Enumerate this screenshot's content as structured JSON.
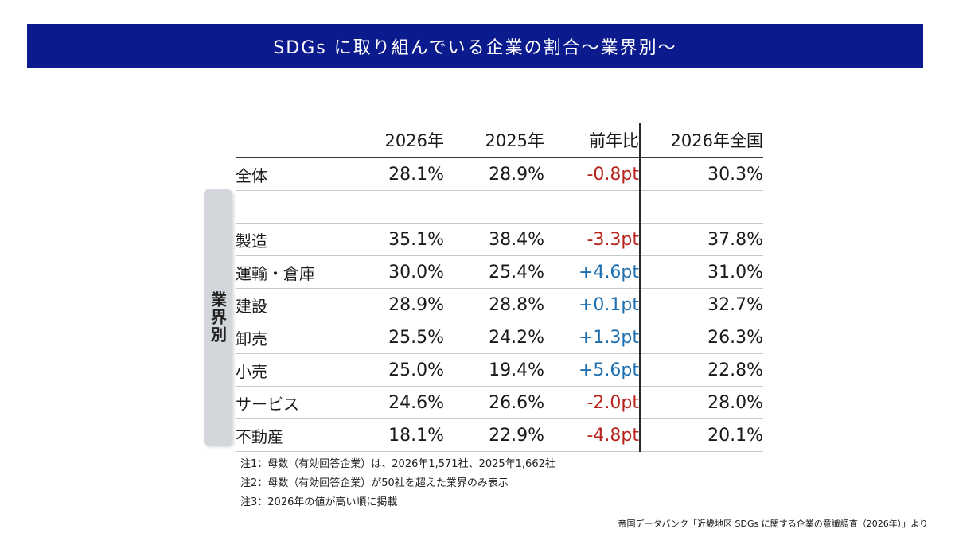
{
  "title": "SDGs に取り組んでいる企業の割合～業界別～",
  "side_label": "業界別",
  "colors": {
    "title_bg": "#0b1a8c",
    "negative": "#b8241c",
    "positive": "#1d6fb0",
    "side_label_bg": "#d3d7dc"
  },
  "chart_data": {
    "type": "table",
    "columns": [
      "",
      "2026年",
      "2025年",
      "前年比",
      "2026年全国"
    ],
    "total": {
      "name": "全体",
      "y2026": "28.1%",
      "y2025": "28.9%",
      "diff": "-0.8pt",
      "diff_sign": "neg",
      "national": "30.3%"
    },
    "rows": [
      {
        "name": "製造",
        "y2026": "35.1%",
        "y2025": "38.4%",
        "diff": "-3.3pt",
        "diff_sign": "neg",
        "national": "37.8%"
      },
      {
        "name": "運輸・倉庫",
        "y2026": "30.0%",
        "y2025": "25.4%",
        "diff": "+4.6pt",
        "diff_sign": "pos",
        "national": "31.0%"
      },
      {
        "name": "建設",
        "y2026": "28.9%",
        "y2025": "28.8%",
        "diff": "+0.1pt",
        "diff_sign": "pos",
        "national": "32.7%"
      },
      {
        "name": "卸売",
        "y2026": "25.5%",
        "y2025": "24.2%",
        "diff": "+1.3pt",
        "diff_sign": "pos",
        "national": "26.3%"
      },
      {
        "name": "小売",
        "y2026": "25.0%",
        "y2025": "19.4%",
        "diff": "+5.6pt",
        "diff_sign": "pos",
        "national": "22.8%"
      },
      {
        "name": "サービス",
        "y2026": "24.6%",
        "y2025": "26.6%",
        "diff": "-2.0pt",
        "diff_sign": "neg",
        "national": "28.0%"
      },
      {
        "name": "不動産",
        "y2026": "18.1%",
        "y2025": "22.9%",
        "diff": "-4.8pt",
        "diff_sign": "neg",
        "national": "20.1%"
      }
    ]
  },
  "notes": [
    "注1：母数（有効回答企業）は、2026年1,571社、2025年1,662社",
    "注2：母数（有効回答企業）が50社を超えた業界のみ表示",
    "注3：2026年の値が高い順に掲載"
  ],
  "source": "帝国データバンク「近畿地区 SDGs に関する企業の意識調査（2026年）」より"
}
